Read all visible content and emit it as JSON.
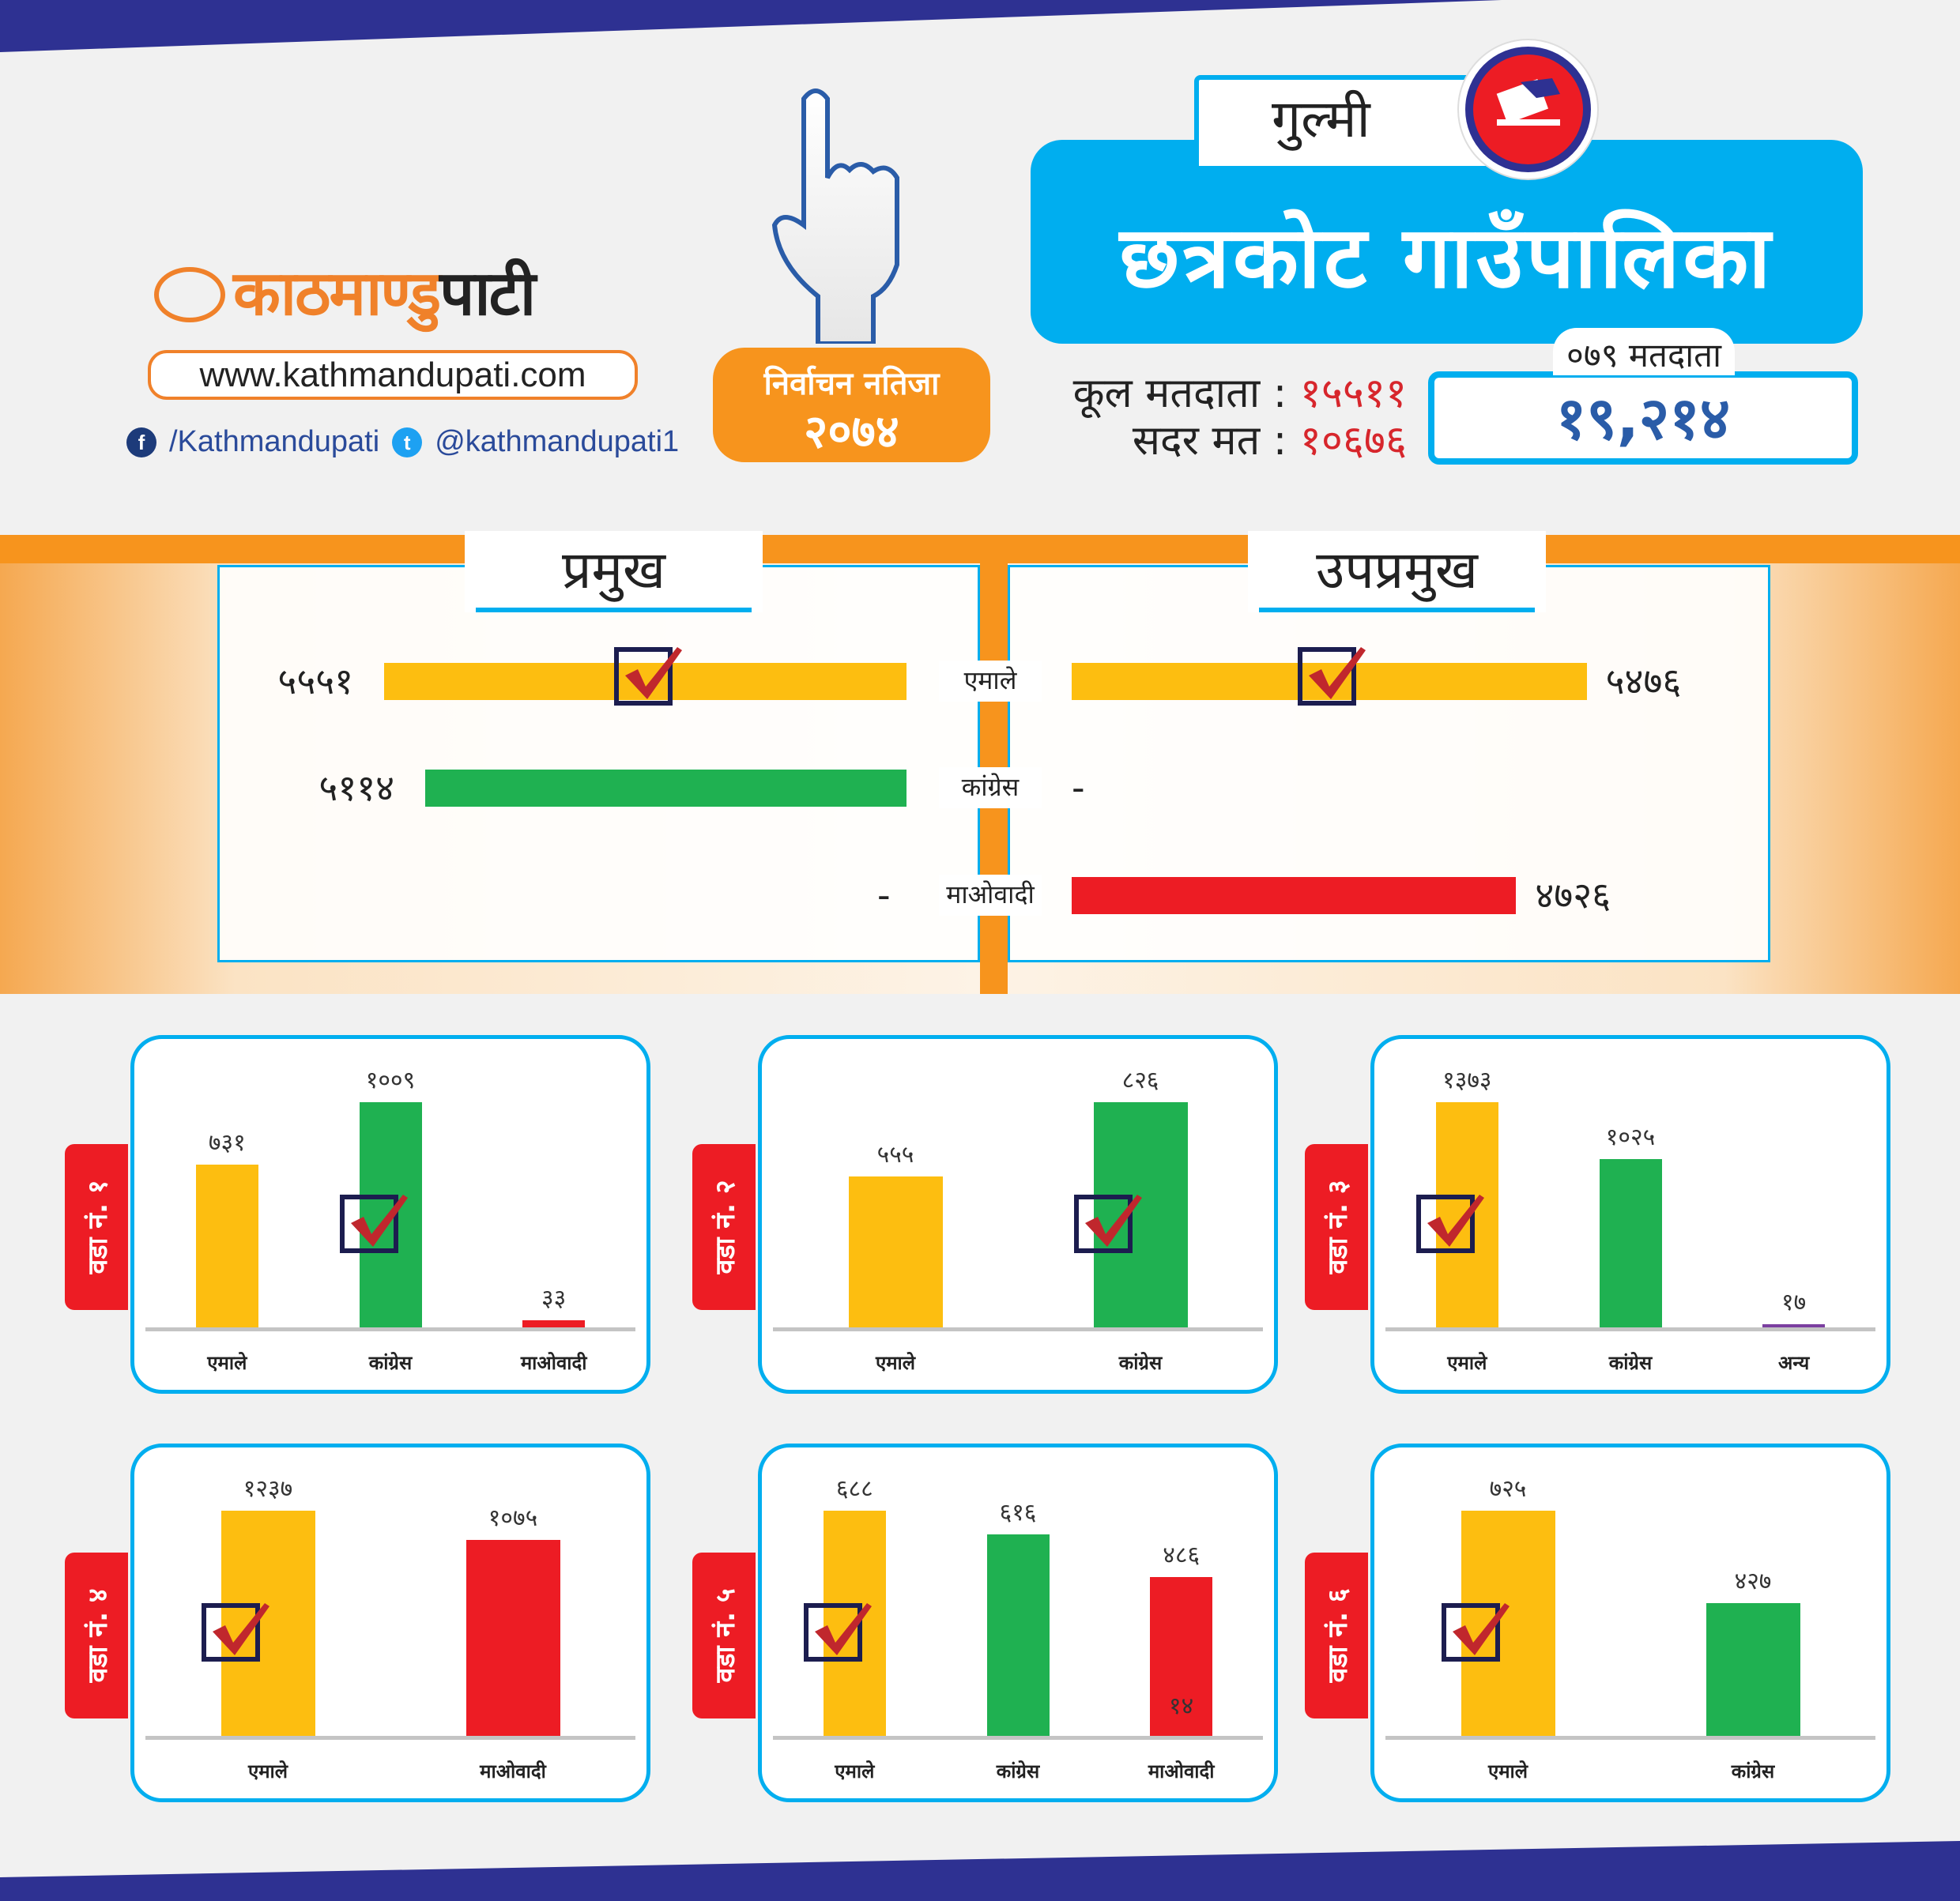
{
  "header": {
    "logo_text_1": "काठमाण्डु",
    "logo_text_2": "पाटी",
    "url": "www.kathmandupati.com",
    "facebook": "/Kathmandupati",
    "twitter": "@kathmandupati1",
    "badge_line1": "निर्वाचन नतिजा",
    "badge_line2": "२०७४",
    "district": "गुल्मी",
    "municipality": "छत्रकोट गाउँपालिका",
    "total_voters_label": "कूल मतदाता :",
    "total_voters": "१५५११",
    "valid_votes_label": "सदर मत :",
    "valid_votes": "१०६७६",
    "voters_079_label": "०७९ मतदाता",
    "voters_079": "१९,२१४"
  },
  "colors": {
    "emale": "#fdbe10",
    "congress": "#1fb151",
    "maoist": "#ed1c24",
    "other": "#7b3fa0",
    "accent": "#00aeef",
    "orange": "#f7941d",
    "navy": "#2e3192"
  },
  "chart_data": {
    "type": "bar",
    "main": {
      "parties": [
        "एमाले",
        "कांग्रेस",
        "माओवादी"
      ],
      "party_colors": [
        "#fdbe10",
        "#1fb151",
        "#ed1c24"
      ],
      "chief": {
        "title": "प्रमुख",
        "values": [
          5551,
          5114,
          null
        ],
        "labels": [
          "५५५१",
          "५११४",
          "-"
        ],
        "winner": 0
      },
      "deputy": {
        "title": "उपप्रमुख",
        "values": [
          5476,
          null,
          4726
        ],
        "labels": [
          "५४७६",
          "-",
          "४७२६"
        ],
        "winner": 0
      }
    },
    "wards": [
      {
        "label": "वडा नं. १",
        "winner": 1,
        "bars": [
          {
            "party": "एमाले",
            "value": 731,
            "display": "७३१",
            "color": "#fdbe10"
          },
          {
            "party": "कांग्रेस",
            "value": 1009,
            "display": "१००९",
            "color": "#1fb151"
          },
          {
            "party": "माओवादी",
            "value": 33,
            "display": "३३",
            "color": "#ed1c24"
          }
        ]
      },
      {
        "label": "वडा नं. २",
        "winner": 1,
        "bars": [
          {
            "party": "एमाले",
            "value": 555,
            "display": "५५५",
            "color": "#fdbe10"
          },
          {
            "party": "कांग्रेस",
            "value": 826,
            "display": "८२६",
            "color": "#1fb151"
          }
        ]
      },
      {
        "label": "वडा नं. ३",
        "winner": 0,
        "bars": [
          {
            "party": "एमाले",
            "value": 1373,
            "display": "१३७३",
            "color": "#fdbe10"
          },
          {
            "party": "कांग्रेस",
            "value": 1025,
            "display": "१०२५",
            "color": "#1fb151"
          },
          {
            "party": "अन्य",
            "value": 17,
            "display": "१७",
            "color": "#7b3fa0"
          }
        ]
      },
      {
        "label": "वडा नं. ४",
        "winner": 0,
        "bars": [
          {
            "party": "एमाले",
            "value": 1237,
            "display": "१२३७",
            "color": "#fdbe10"
          },
          {
            "party": "माओवादी",
            "value": 1075,
            "display": "१०७५",
            "color": "#ed1c24"
          }
        ]
      },
      {
        "label": "वडा नं. ५",
        "winner": 0,
        "bars": [
          {
            "party": "एमाले",
            "value": 688,
            "display": "६८८",
            "color": "#fdbe10"
          },
          {
            "party": "कांग्रेस",
            "value": 616,
            "display": "६१६",
            "color": "#1fb151"
          },
          {
            "party": "माओवादी",
            "value": 486,
            "display": "४८६",
            "color": "#ed1c24",
            "inner": "१४"
          }
        ]
      },
      {
        "label": "वडा नं. ६",
        "winner": 0,
        "bars": [
          {
            "party": "एमाले",
            "value": 725,
            "display": "७२५",
            "color": "#fdbe10"
          },
          {
            "party": "कांग्रेस",
            "value": 427,
            "display": "४२७",
            "color": "#1fb151"
          }
        ]
      }
    ]
  }
}
